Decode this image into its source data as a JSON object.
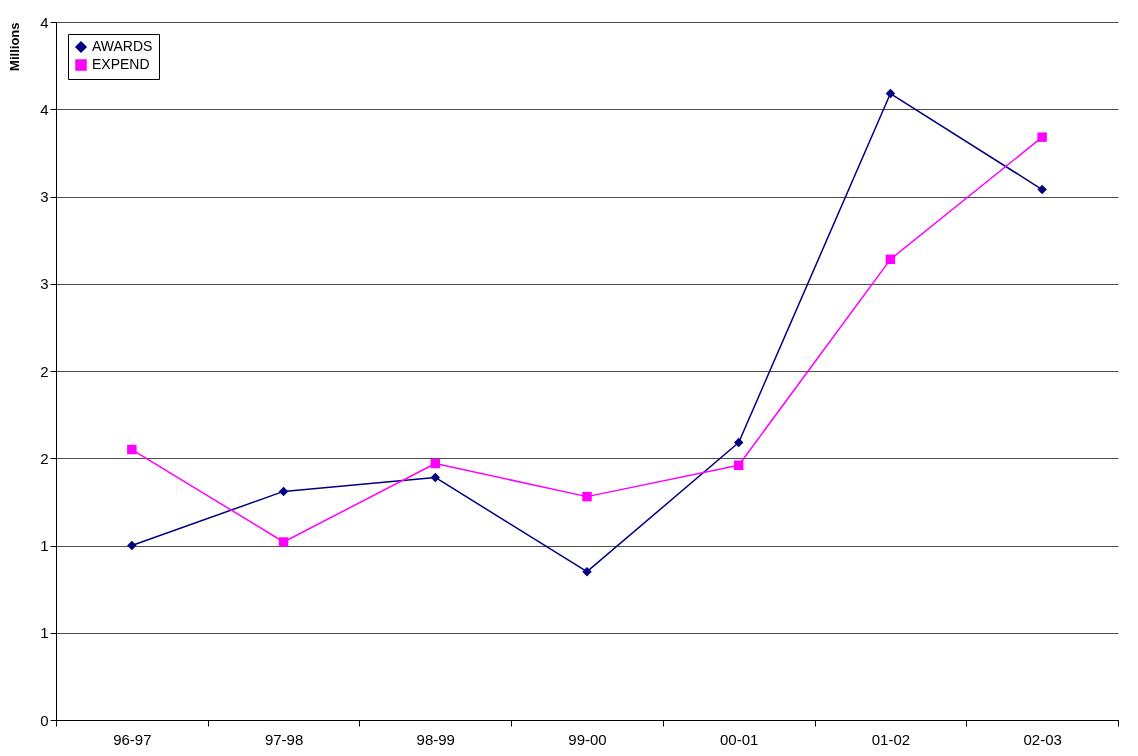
{
  "chart_data": {
    "type": "line",
    "ylabel": "Millions",
    "categories": [
      "96-97",
      "97-98",
      "98-99",
      "99-00",
      "00-01",
      "01-02",
      "02-03"
    ],
    "series": [
      {
        "name": "AWARDS",
        "color": "#000080",
        "marker": "diamond",
        "values": [
          1.0,
          1.31,
          1.39,
          0.85,
          1.59,
          3.59,
          3.04
        ]
      },
      {
        "name": "EXPEND",
        "color": "#ff00ff",
        "marker": "square",
        "values": [
          1.55,
          1.02,
          1.47,
          1.28,
          1.46,
          2.64,
          3.34
        ]
      }
    ],
    "ylim": [
      0,
      4
    ],
    "yticks": [
      0,
      {
        "value": 0.5,
        "label": "1"
      },
      1,
      {
        "value": 1.5,
        "label": "2"
      },
      2,
      {
        "value": 2.5,
        "label": "3"
      },
      3,
      {
        "value": 3.5,
        "label": "4"
      },
      4
    ],
    "grid": "y",
    "legend": "top left"
  }
}
